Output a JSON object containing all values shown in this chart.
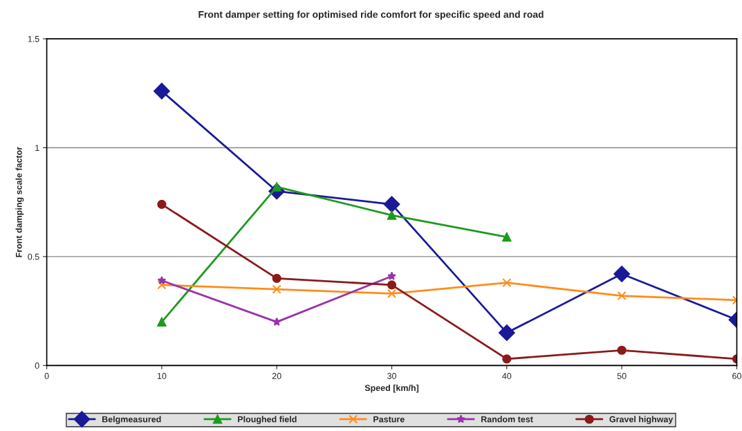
{
  "chart_data": {
    "type": "line",
    "title": "Front damper setting for optimised ride comfort for specific speed and road",
    "xlabel": "Speed [km/h]",
    "ylabel": "Front damping scale factor",
    "xlim": [
      0,
      60
    ],
    "xticks": [
      0,
      10,
      20,
      30,
      40,
      50,
      60
    ],
    "ylim": [
      0,
      1.5
    ],
    "yticks": [
      0,
      0.5,
      1,
      1.5
    ],
    "grid": "y",
    "legend": "bottom",
    "series": [
      {
        "name": "Belgmeasured",
        "color": "#1a1a99",
        "marker": "diamond",
        "x": [
          10,
          20,
          30,
          40,
          50,
          60
        ],
        "values": [
          1.26,
          0.8,
          0.74,
          0.15,
          0.42,
          0.21
        ]
      },
      {
        "name": "Ploughed field",
        "color": "#1e9a1e",
        "marker": "triangle",
        "x": [
          10,
          20,
          30,
          40
        ],
        "values": [
          0.2,
          0.82,
          0.69,
          0.59
        ]
      },
      {
        "name": "Pasture",
        "color": "#ff8c1a",
        "marker": "cross",
        "x": [
          10,
          20,
          30,
          40,
          50,
          60
        ],
        "values": [
          0.37,
          0.35,
          0.33,
          0.38,
          0.32,
          0.3
        ]
      },
      {
        "name": "Random test",
        "color": "#9933aa",
        "marker": "star",
        "x": [
          10,
          20,
          30
        ],
        "values": [
          0.39,
          0.2,
          0.41
        ]
      },
      {
        "name": "Gravel highway",
        "color": "#8b1a1a",
        "marker": "circle",
        "x": [
          10,
          20,
          30,
          40,
          50,
          60
        ],
        "values": [
          0.74,
          0.4,
          0.37,
          0.03,
          0.07,
          0.03
        ]
      }
    ]
  }
}
